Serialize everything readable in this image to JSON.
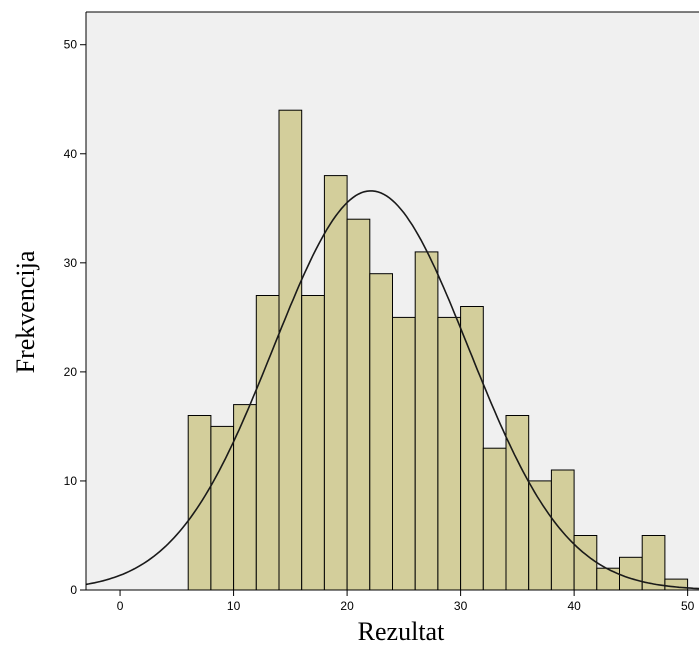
{
  "chart_data": {
    "type": "bar",
    "subtype": "histogram-with-normal-curve",
    "title": "",
    "xlabel": "Rezultat",
    "ylabel": "Frekvencija",
    "xlim": [
      -3,
      51
    ],
    "ylim": [
      0,
      53
    ],
    "x_ticks": [
      0,
      10,
      20,
      30,
      40,
      50
    ],
    "y_ticks": [
      0,
      10,
      20,
      30,
      40,
      50
    ],
    "bin_width": 2,
    "bin_starts": [
      6,
      8,
      10,
      12,
      14,
      16,
      18,
      20,
      22,
      24,
      26,
      28,
      30,
      32,
      34,
      36,
      38,
      40,
      42,
      44,
      46,
      48
    ],
    "values": [
      16,
      15,
      17,
      27,
      44,
      27,
      38,
      34,
      29,
      25,
      31,
      25,
      26,
      13,
      16,
      10,
      11,
      5,
      2,
      3,
      5,
      1
    ],
    "normal_curve": {
      "mean": 22.1,
      "sd": 8.6,
      "peak": 36.6
    },
    "grid": false,
    "legend": "none",
    "colors": {
      "plot_background": "#f0f0f0",
      "bar_fill": "#d3ce9b",
      "bar_stroke": "#000000",
      "curve": "#1a1a1a"
    }
  }
}
